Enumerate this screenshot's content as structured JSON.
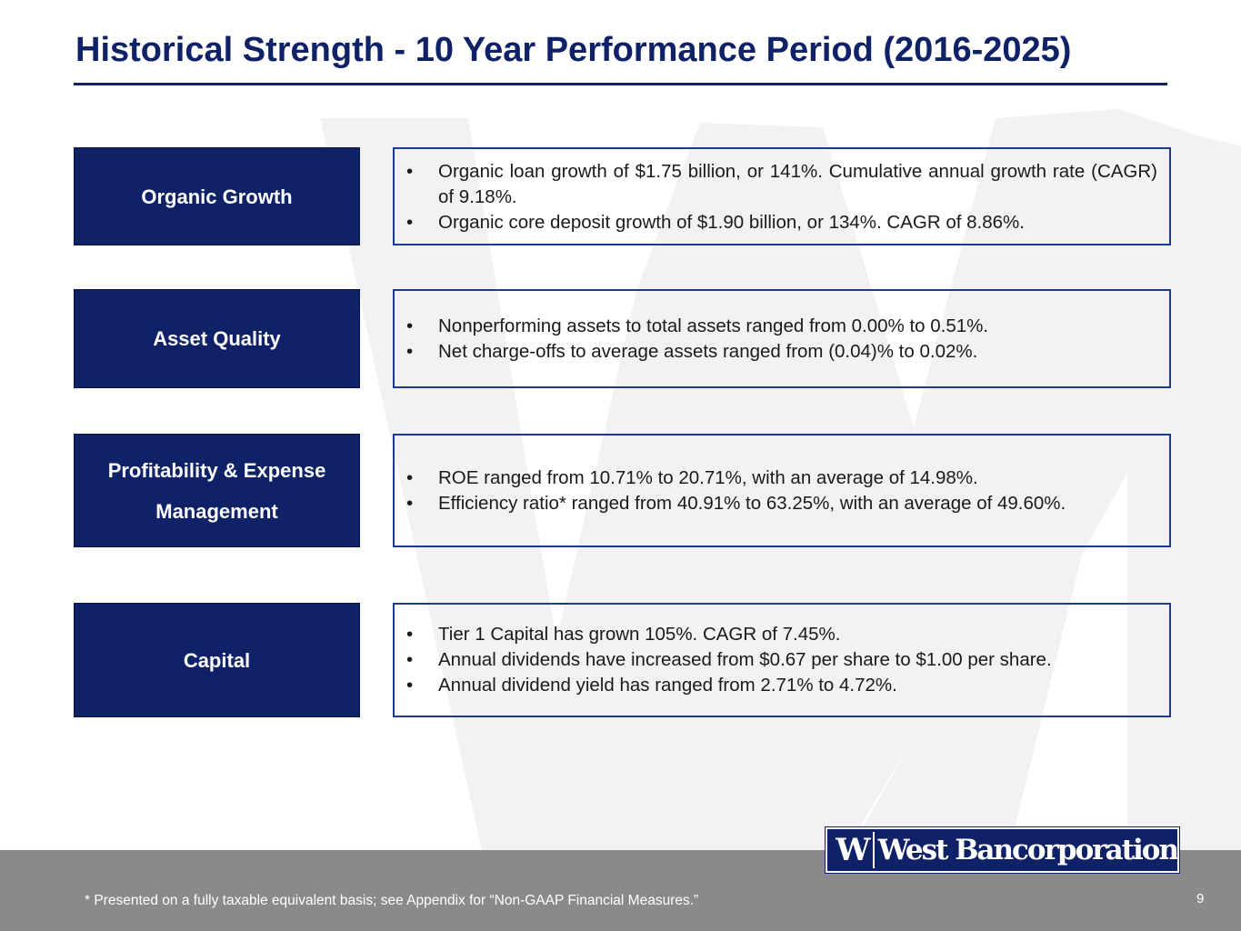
{
  "title": "Historical Strength - 10 Year Performance Period (2016-2025)",
  "rows": [
    {
      "category": "Organic Growth",
      "bullets": [
        "Organic loan growth of $1.75 billion, or 141%. Cumulative annual growth rate (CAGR) of 9.18%.",
        "Organic core deposit growth of $1.90 billion, or 134%. CAGR of 8.86%."
      ]
    },
    {
      "category": "Asset Quality",
      "bullets": [
        "Nonperforming assets to total assets ranged from 0.00% to 0.51%.",
        "Net charge-offs to average assets ranged from (0.04)% to 0.02%."
      ]
    },
    {
      "category": "Profitability & Expense Management",
      "bullets": [
        "ROE ranged from 10.71% to 20.71%, with an average of 14.98%.",
        "Efficiency ratio* ranged from 40.91% to 63.25%, with an average of 49.60%."
      ]
    },
    {
      "category": "Capital",
      "bullets": [
        "Tier 1 Capital has grown 105%. CAGR of 7.45%.",
        "Annual dividends have increased from $0.67 per share to $1.00 per share.",
        "Annual dividend yield has ranged from 2.71% to 4.72%."
      ]
    }
  ],
  "footer": {
    "footnote": "* Presented on a fully taxable equivalent basis; see Appendix for “Non-GAAP Financial Measures.”",
    "page_number": "9"
  },
  "logo": {
    "mark": "W",
    "name": "West Bancorporation"
  },
  "colors": {
    "navy": "#0f2167",
    "border_blue": "#1b3a94",
    "footer_gray": "#8a8a8c",
    "watermark_gray": "#f2f2f2"
  }
}
